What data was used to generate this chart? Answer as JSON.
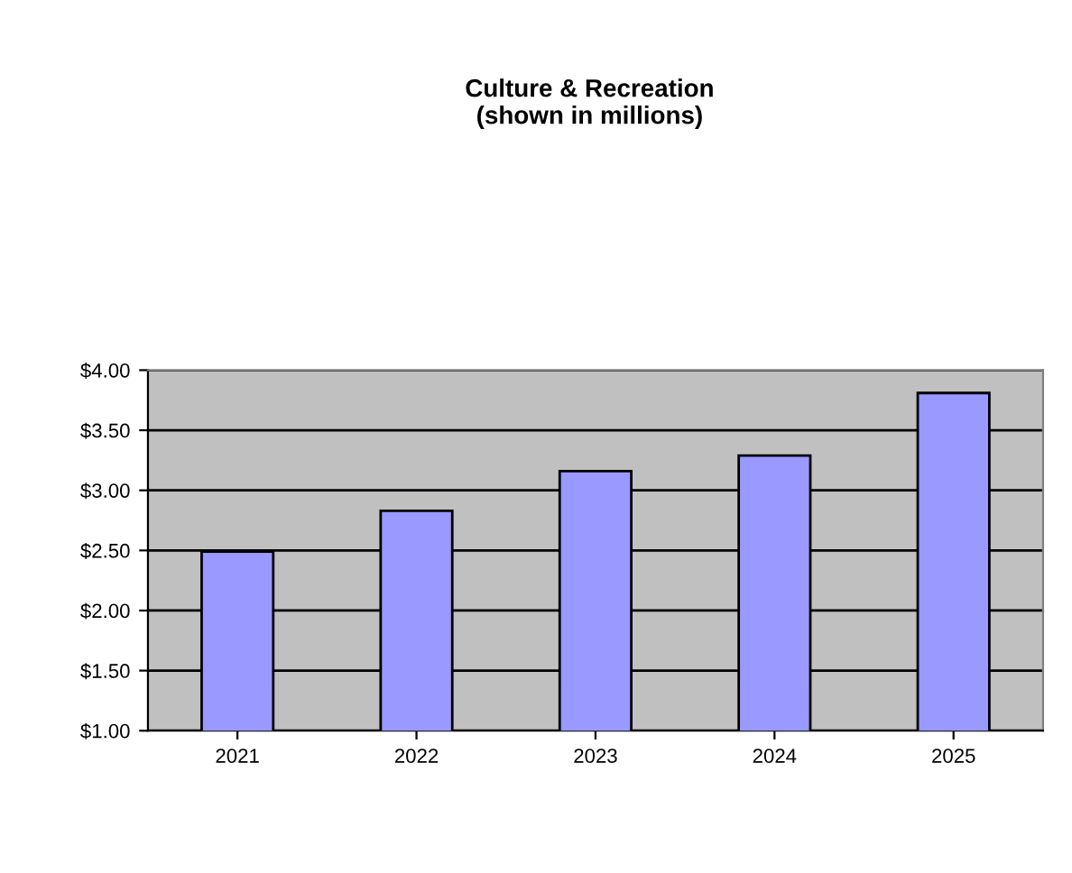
{
  "chart_data": {
    "type": "bar",
    "title": "Culture & Recreation\n(shown in millions)",
    "categories": [
      "2021",
      "2022",
      "2023",
      "2024",
      "2025"
    ],
    "values": [
      2.49,
      2.83,
      3.16,
      3.29,
      3.81
    ],
    "color": "#9999ff",
    "ylim": [
      1.0,
      4.0
    ],
    "yticks": [
      {
        "value": 1.0,
        "label": "$1.00"
      },
      {
        "value": 1.5,
        "label": "$1.50"
      },
      {
        "value": 2.0,
        "label": "$2.00"
      },
      {
        "value": 2.5,
        "label": "$2.50"
      },
      {
        "value": 3.0,
        "label": "$3.00"
      },
      {
        "value": 3.5,
        "label": "$3.50"
      },
      {
        "value": 4.0,
        "label": "$4.00"
      }
    ],
    "grid": "y"
  }
}
